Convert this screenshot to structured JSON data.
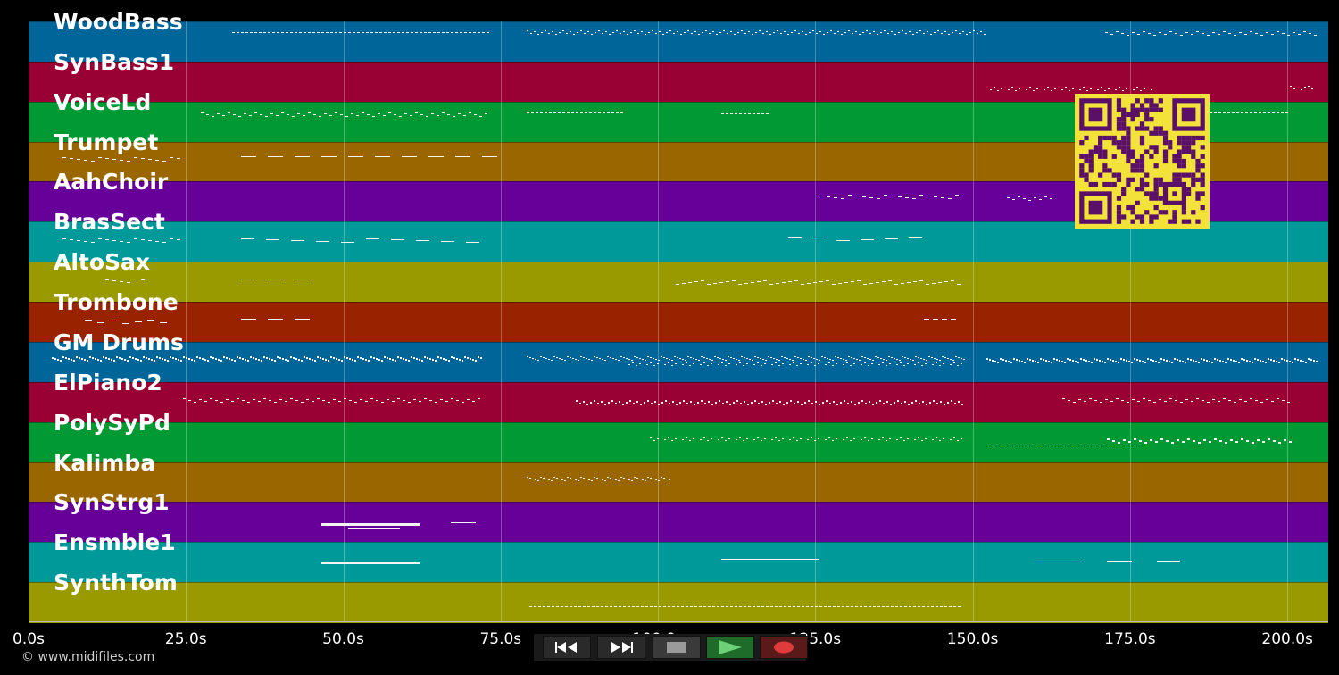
{
  "tracks": [
    {
      "name": "WoodBass",
      "color": "#006699"
    },
    {
      "name": "SynBass1",
      "color": "#990033"
    },
    {
      "name": "VoiceLd",
      "color": "#009933"
    },
    {
      "name": "Trumpet",
      "color": "#996600"
    },
    {
      "name": "AahChoir",
      "color": "#660099"
    },
    {
      "name": "BrasSect",
      "color": "#009999"
    },
    {
      "name": "AltoSax",
      "color": "#999900"
    },
    {
      "name": "Trombone",
      "color": "#992200"
    },
    {
      "name": "GM Drums",
      "color": "#006699"
    },
    {
      "name": "ElPiano2",
      "color": "#990033"
    },
    {
      "name": "PolySyPd",
      "color": "#009933"
    },
    {
      "name": "Kalimba",
      "color": "#996600"
    },
    {
      "name": "SynStrg1",
      "color": "#660099"
    },
    {
      "name": "Ensmble1",
      "color": "#009999"
    },
    {
      "name": "SynthTom",
      "color": "#999900"
    }
  ],
  "timeline": {
    "ticks": [
      "0.0s",
      "25.0s",
      "50.0s",
      "75.0s",
      "100.0s",
      "125.0s",
      "150.0s",
      "175.0s",
      "200.0s"
    ],
    "tick_values": [
      0,
      25,
      50,
      75,
      100,
      125,
      150,
      175,
      200
    ],
    "range": [
      0,
      206.5
    ]
  },
  "transport": [
    {
      "name": "rewind-button",
      "icon": "rewind-icon",
      "color": "#2a2a2a"
    },
    {
      "name": "fast-forward-button",
      "icon": "fast-forward-icon",
      "color": "#2a2a2a"
    },
    {
      "name": "stop-button",
      "icon": "stop-icon",
      "color": "#3a3a3a"
    },
    {
      "name": "play-button",
      "icon": "play-icon",
      "color": "#1f6b2a"
    },
    {
      "name": "record-button",
      "icon": "record-icon",
      "color": "#5a1a1a"
    }
  ],
  "copyright": "© www.midifiles.com",
  "qr_color": "#f2e23a",
  "qr_dark": "#5a1068"
}
